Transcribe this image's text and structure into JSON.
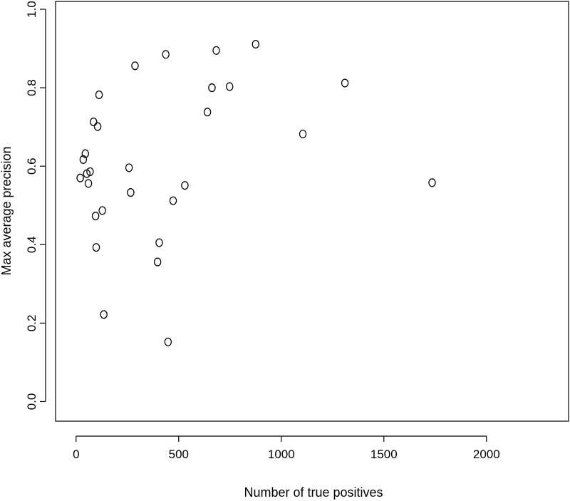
{
  "chart_data": {
    "type": "scatter",
    "xlabel": "Number of true positives",
    "ylabel": "Max average precision",
    "xlim": [
      -100,
      2400
    ],
    "ylim": [
      -0.05,
      1.02
    ],
    "x_ticks": [
      0,
      500,
      1000,
      1500,
      2000
    ],
    "x_tick_labels": [
      "0",
      "500",
      "1000",
      "1500",
      "2000"
    ],
    "y_ticks": [
      0.0,
      0.2,
      0.4,
      0.6,
      0.8,
      1.0
    ],
    "y_tick_labels": [
      "0.0",
      "0.2",
      "0.4",
      "0.6",
      "0.8",
      "1.0"
    ],
    "grid": false,
    "series": [
      {
        "marker": "open-circle",
        "color": "#000000",
        "points": [
          {
            "x": 20,
            "y": 0.57
          },
          {
            "x": 35,
            "y": 0.617
          },
          {
            "x": 45,
            "y": 0.632
          },
          {
            "x": 52,
            "y": 0.581
          },
          {
            "x": 60,
            "y": 0.556
          },
          {
            "x": 68,
            "y": 0.586
          },
          {
            "x": 85,
            "y": 0.713
          },
          {
            "x": 95,
            "y": 0.473
          },
          {
            "x": 98,
            "y": 0.393
          },
          {
            "x": 105,
            "y": 0.701
          },
          {
            "x": 112,
            "y": 0.782
          },
          {
            "x": 128,
            "y": 0.487
          },
          {
            "x": 135,
            "y": 0.222
          },
          {
            "x": 258,
            "y": 0.596
          },
          {
            "x": 266,
            "y": 0.533
          },
          {
            "x": 287,
            "y": 0.856
          },
          {
            "x": 397,
            "y": 0.356
          },
          {
            "x": 405,
            "y": 0.405
          },
          {
            "x": 437,
            "y": 0.885
          },
          {
            "x": 448,
            "y": 0.152
          },
          {
            "x": 473,
            "y": 0.512
          },
          {
            "x": 530,
            "y": 0.551
          },
          {
            "x": 640,
            "y": 0.738
          },
          {
            "x": 662,
            "y": 0.8
          },
          {
            "x": 683,
            "y": 0.895
          },
          {
            "x": 748,
            "y": 0.803
          },
          {
            "x": 875,
            "y": 0.911
          },
          {
            "x": 1105,
            "y": 0.682
          },
          {
            "x": 1310,
            "y": 0.812
          },
          {
            "x": 1735,
            "y": 0.558
          }
        ]
      }
    ]
  }
}
